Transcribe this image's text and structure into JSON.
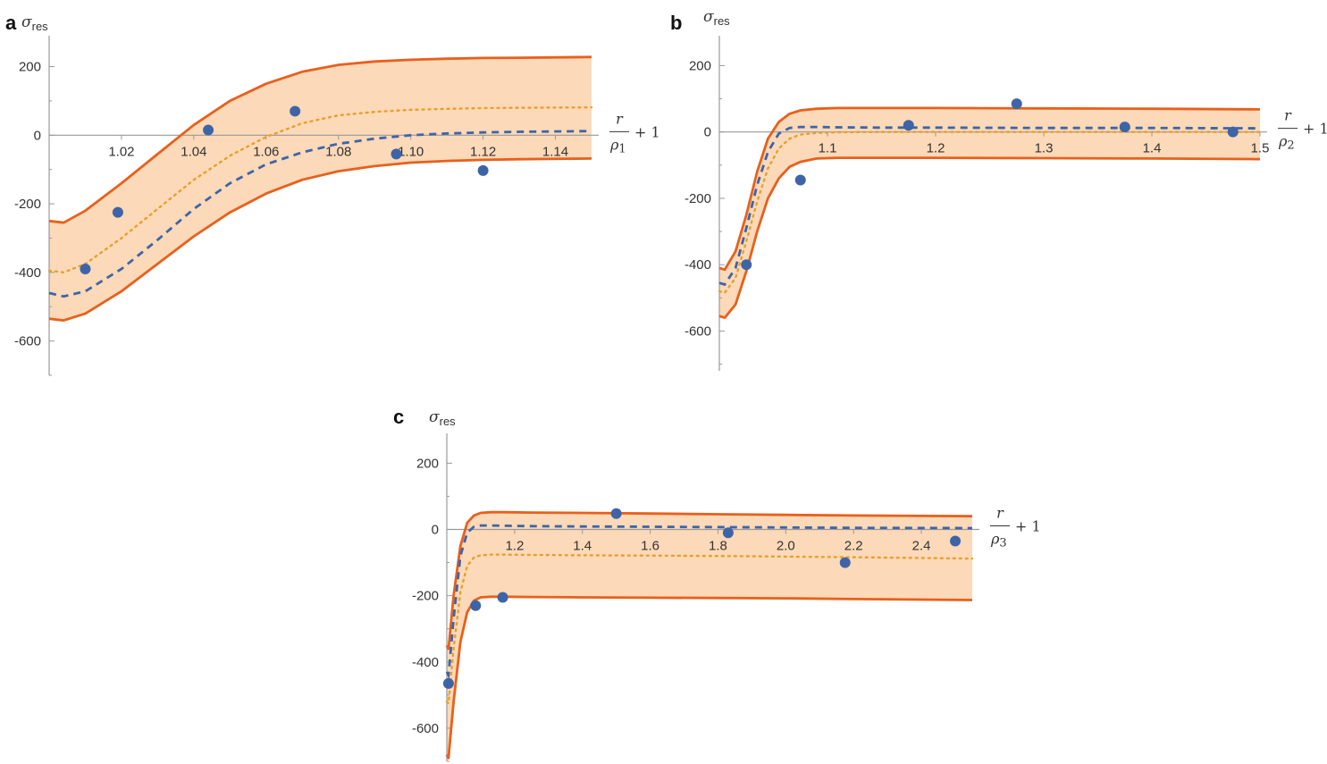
{
  "chart_data": [
    {
      "panel": "a",
      "type": "line",
      "ylabel": "σ",
      "ylabel_sub": "res",
      "xlabel": {
        "numerator": "r",
        "denominator": "ρ",
        "denominator_sub": "1",
        "suffix": "+ 1"
      },
      "xlim": [
        1.0,
        1.15
      ],
      "ylim": [
        -700,
        290
      ],
      "xticks": [
        1.02,
        1.04,
        1.06,
        1.08,
        1.1,
        1.12,
        1.14
      ],
      "xtick_labels": [
        "1.02",
        "1.04",
        "1.06",
        "1.08",
        "1.10",
        "1.12",
        "1.14"
      ],
      "yticks": [
        200,
        0,
        -200,
        -400,
        -600
      ],
      "ytick_labels": [
        "200",
        "0",
        "-200",
        "-400",
        "-600"
      ],
      "band_upper": {
        "x": [
          1.0,
          1.004,
          1.01,
          1.02,
          1.03,
          1.04,
          1.05,
          1.06,
          1.07,
          1.08,
          1.09,
          1.1,
          1.11,
          1.12,
          1.13,
          1.15
        ],
        "y": [
          -250,
          -255,
          -220,
          -140,
          -55,
          30,
          100,
          150,
          185,
          205,
          215,
          220,
          223,
          225,
          226,
          228
        ]
      },
      "band_lower": {
        "x": [
          1.0,
          1.004,
          1.01,
          1.02,
          1.03,
          1.04,
          1.05,
          1.06,
          1.07,
          1.08,
          1.09,
          1.1,
          1.11,
          1.12,
          1.13,
          1.15
        ],
        "y": [
          -535,
          -540,
          -520,
          -455,
          -375,
          -295,
          -225,
          -170,
          -130,
          -105,
          -90,
          -80,
          -75,
          -72,
          -70,
          -68
        ]
      },
      "mean_line": {
        "x": [
          1.0,
          1.004,
          1.01,
          1.02,
          1.03,
          1.04,
          1.05,
          1.06,
          1.07,
          1.08,
          1.09,
          1.1,
          1.11,
          1.12,
          1.13,
          1.15
        ],
        "y": [
          -395,
          -400,
          -375,
          -300,
          -215,
          -130,
          -60,
          -5,
          35,
          58,
          68,
          74,
          77,
          79,
          80,
          81
        ]
      },
      "fit_line": {
        "x": [
          1.0,
          1.004,
          1.01,
          1.02,
          1.03,
          1.04,
          1.05,
          1.06,
          1.07,
          1.08,
          1.09,
          1.1,
          1.11,
          1.12,
          1.13,
          1.15
        ],
        "y": [
          -460,
          -470,
          -455,
          -390,
          -305,
          -215,
          -140,
          -85,
          -50,
          -25,
          -10,
          0,
          5,
          8,
          10,
          12
        ]
      },
      "points": {
        "x": [
          1.01,
          1.019,
          1.044,
          1.068,
          1.096,
          1.12
        ],
        "y": [
          -390,
          -225,
          15,
          70,
          -55,
          -103
        ]
      }
    },
    {
      "panel": "b",
      "type": "line",
      "ylabel": "σ",
      "ylabel_sub": "res",
      "xlabel": {
        "numerator": "r",
        "denominator": "ρ",
        "denominator_sub": "2",
        "suffix": "+ 1"
      },
      "xlim": [
        1.0,
        1.5
      ],
      "ylim": [
        -720,
        290
      ],
      "xticks": [
        1.1,
        1.2,
        1.3,
        1.4,
        1.5
      ],
      "xtick_labels": [
        "1.1",
        "1.2",
        "1.3",
        "1.4",
        "1.5"
      ],
      "yticks": [
        200,
        0,
        -200,
        -400,
        -600
      ],
      "ytick_labels": [
        "200",
        "0",
        "-200",
        "-400",
        "-600"
      ],
      "band_upper": {
        "x": [
          1.0,
          1.005,
          1.015,
          1.025,
          1.035,
          1.045,
          1.055,
          1.065,
          1.075,
          1.09,
          1.11,
          1.15,
          1.2,
          1.3,
          1.4,
          1.5
        ],
        "y": [
          -410,
          -415,
          -360,
          -250,
          -120,
          -20,
          30,
          55,
          65,
          70,
          72,
          72,
          72,
          71,
          70,
          68
        ]
      },
      "band_lower": {
        "x": [
          1.0,
          1.005,
          1.015,
          1.025,
          1.035,
          1.045,
          1.055,
          1.065,
          1.075,
          1.09,
          1.11,
          1.15,
          1.2,
          1.3,
          1.4,
          1.5
        ],
        "y": [
          -555,
          -560,
          -520,
          -420,
          -300,
          -200,
          -140,
          -105,
          -90,
          -80,
          -78,
          -78,
          -78,
          -79,
          -80,
          -82
        ]
      },
      "mean_line": {
        "x": [
          1.0,
          1.005,
          1.015,
          1.025,
          1.035,
          1.045,
          1.055,
          1.065,
          1.075,
          1.09,
          1.11,
          1.15,
          1.2,
          1.3,
          1.4,
          1.5
        ],
        "y": [
          -480,
          -485,
          -440,
          -330,
          -210,
          -110,
          -50,
          -20,
          -8,
          -3,
          -1,
          0,
          0,
          0,
          0,
          0
        ]
      },
      "fit_line": {
        "x": [
          1.0,
          1.005,
          1.015,
          1.025,
          1.035,
          1.045,
          1.055,
          1.065,
          1.075,
          1.09,
          1.11,
          1.15,
          1.2,
          1.3,
          1.4,
          1.5
        ],
        "y": [
          -455,
          -460,
          -410,
          -290,
          -160,
          -60,
          -5,
          12,
          15,
          15,
          14,
          13,
          13,
          12,
          12,
          11
        ]
      },
      "points": {
        "x": [
          1.025,
          1.075,
          1.175,
          1.275,
          1.375,
          1.475
        ],
        "y": [
          -400,
          -145,
          20,
          85,
          15,
          0
        ]
      }
    },
    {
      "panel": "c",
      "type": "line",
      "ylabel": "σ",
      "ylabel_sub": "res",
      "xlabel": {
        "numerator": "r",
        "denominator": "ρ",
        "denominator_sub": "3",
        "suffix": "+ 1"
      },
      "xlim": [
        1.0,
        2.55
      ],
      "ylim": [
        -700,
        290
      ],
      "xticks": [
        1.2,
        1.4,
        1.6,
        1.8,
        2.0,
        2.2,
        2.4
      ],
      "xtick_labels": [
        "1.2",
        "1.4",
        "1.6",
        "1.8",
        "2.0",
        "2.2",
        "2.4"
      ],
      "yticks": [
        200,
        0,
        -200,
        -400,
        -600
      ],
      "ytick_labels": [
        "200",
        "0",
        "-200",
        "-400",
        "-600"
      ],
      "band_upper": {
        "x": [
          1.0,
          1.005,
          1.02,
          1.04,
          1.06,
          1.08,
          1.1,
          1.13,
          1.17,
          1.25,
          1.4,
          1.6,
          1.8,
          2.0,
          2.2,
          2.55
        ],
        "y": [
          -350,
          -360,
          -200,
          -50,
          20,
          42,
          50,
          52,
          52,
          51,
          50,
          48,
          46,
          44,
          42,
          40
        ]
      },
      "band_lower": {
        "x": [
          1.0,
          1.005,
          1.02,
          1.04,
          1.06,
          1.08,
          1.1,
          1.13,
          1.17,
          1.25,
          1.4,
          1.6,
          1.8,
          2.0,
          2.2,
          2.55
        ],
        "y": [
          -680,
          -690,
          -520,
          -340,
          -250,
          -215,
          -205,
          -203,
          -203,
          -204,
          -205,
          -206,
          -207,
          -208,
          -210,
          -213
        ]
      },
      "mean_line": {
        "x": [
          1.0,
          1.005,
          1.02,
          1.04,
          1.06,
          1.08,
          1.1,
          1.13,
          1.17,
          1.25,
          1.4,
          1.6,
          1.8,
          2.0,
          2.2,
          2.55
        ],
        "y": [
          -520,
          -525,
          -360,
          -190,
          -110,
          -85,
          -78,
          -76,
          -76,
          -77,
          -78,
          -79,
          -80,
          -82,
          -84,
          -88
        ]
      },
      "fit_line": {
        "x": [
          1.0,
          1.005,
          1.02,
          1.04,
          1.06,
          1.08,
          1.1,
          1.13,
          1.17,
          1.25,
          1.4,
          1.6,
          1.8,
          2.0,
          2.2,
          2.55
        ],
        "y": [
          -430,
          -440,
          -270,
          -80,
          -10,
          8,
          12,
          12,
          11,
          10,
          9,
          8,
          7,
          6,
          5,
          4
        ]
      },
      "points": {
        "x": [
          1.005,
          1.085,
          1.165,
          1.5,
          1.83,
          2.175,
          2.5
        ],
        "y": [
          -465,
          -230,
          -205,
          48,
          -10,
          -100,
          -35
        ]
      }
    }
  ],
  "colors": {
    "band_fill": "#fcd9b8",
    "band_edge": "#e8601c",
    "mean_line": "#e8a02c",
    "fit_line": "#3e64a8",
    "points": "#3e64a8",
    "axis": "#999999"
  }
}
